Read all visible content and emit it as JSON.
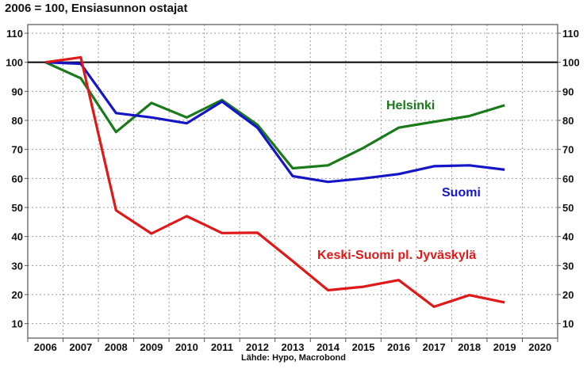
{
  "chart_data": {
    "type": "line",
    "title": "2006 = 100, Ensiasunnon ostajat",
    "source": "Lähde: Hypo, Macrobond",
    "x_ticks": [
      "2006",
      "2007",
      "2008",
      "2009",
      "2010",
      "2011",
      "2012",
      "2013",
      "2014",
      "2015",
      "2016",
      "2017",
      "2018",
      "2019",
      "2020"
    ],
    "xlim": [
      2006,
      2020
    ],
    "ylim": [
      5,
      113
    ],
    "y_ticks": [
      10,
      20,
      30,
      40,
      50,
      60,
      70,
      80,
      90,
      100,
      110
    ],
    "reference_line": 100,
    "grid": true,
    "series": [
      {
        "name": "Helsinki",
        "color": "#1a7a1a",
        "x": [
          2006,
          2007,
          2008,
          2009,
          2010,
          2011,
          2012,
          2013,
          2014,
          2015,
          2016,
          2017,
          2018,
          2019
        ],
        "values": [
          100,
          94.5,
          76,
          86,
          81,
          87,
          78.5,
          63.5,
          64.5,
          70.5,
          77.5,
          79.5,
          81.5,
          85.2
        ]
      },
      {
        "name": "Suomi",
        "color": "#1515c8",
        "x": [
          2006,
          2007,
          2008,
          2009,
          2010,
          2011,
          2012,
          2013,
          2014,
          2015,
          2016,
          2017,
          2018,
          2019
        ],
        "values": [
          100,
          99.5,
          82.5,
          81,
          79,
          86.5,
          77.5,
          60.8,
          58.8,
          60,
          61.5,
          64.2,
          64.5,
          63
        ]
      },
      {
        "name": "Keski-Suomi pl. Jyväskylä",
        "color": "#e01818",
        "x": [
          2006,
          2007,
          2008,
          2009,
          2010,
          2011,
          2012,
          2013,
          2014,
          2015,
          2016,
          2017,
          2018,
          2019
        ],
        "values": [
          100,
          101.7,
          49,
          41,
          47,
          41.2,
          41.3,
          31.5,
          21.5,
          22.7,
          25,
          15.8,
          19.8,
          17.3
        ]
      }
    ],
    "series_label_positions": [
      "Helsinki label near 2011–2012 at ~83",
      "Suomi label near 2018 at ~55",
      "Keski-Suomi label near 2015 at ~33"
    ]
  }
}
